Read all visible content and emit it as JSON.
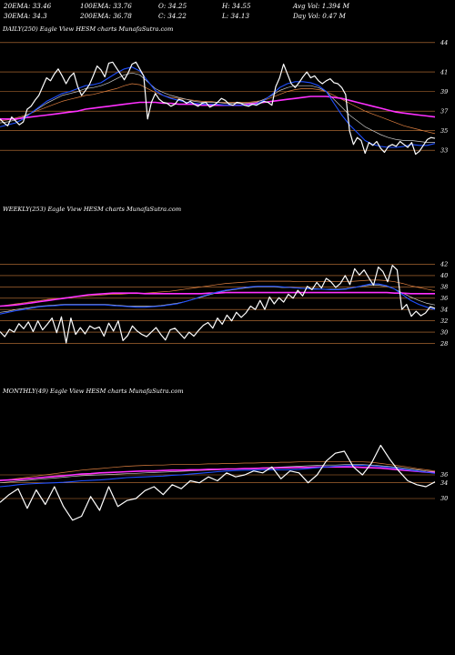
{
  "header": {
    "row1": [
      "20EMA: 33.46",
      "100EMA: 33.76",
      "O: 34.25",
      "H: 34.55",
      "Avg Vol: 1.394  M"
    ],
    "row2": [
      "30EMA: 34.3",
      "200EMA: 36.78",
      "C: 34.22",
      "L: 34.13",
      "Day Vol: 0.47  M"
    ]
  },
  "colors": {
    "background": "#000000",
    "price": "#ffffff",
    "ema_short": "#1f4fff",
    "ema_mid": "#c9c9c9",
    "ema_long": "#e08040",
    "ema_200": "#ff30ff",
    "hline": "#c87a3a"
  },
  "chart_data": [
    {
      "type": "line",
      "title": "DAILY(250) Eagle  View  HESM charts MunafaSutra.com",
      "ylim": [
        32,
        45
      ],
      "yticks": [
        44,
        41,
        39,
        37,
        35,
        33
      ],
      "n": 250,
      "series": [
        {
          "key": "price",
          "values": [
            36.2,
            35.8,
            35.5,
            36.4,
            36.0,
            35.6,
            35.9,
            37.2,
            37.5,
            38.1,
            38.6,
            39.5,
            40.4,
            40.1,
            40.8,
            41.3,
            40.6,
            39.8,
            40.5,
            40.9,
            39.5,
            38.6,
            39.1,
            39.7,
            40.6,
            41.6,
            41.2,
            40.5,
            41.9,
            42.0,
            41.4,
            40.8,
            40.2,
            40.9,
            41.8,
            42.0,
            41.3,
            40.6,
            36.2,
            37.9,
            38.8,
            38.2,
            37.9,
            37.8,
            37.5,
            37.7,
            38.2,
            38.1,
            37.8,
            38.0,
            37.7,
            37.5,
            37.8,
            37.9,
            37.4,
            37.6,
            37.9,
            38.3,
            38.1,
            37.7,
            37.6,
            37.9,
            37.8,
            37.6,
            37.5,
            37.7,
            37.6,
            37.8,
            38.0,
            37.9,
            37.6,
            39.5,
            40.4,
            41.8,
            40.8,
            39.8,
            39.4,
            39.9,
            40.5,
            41.0,
            40.4,
            40.6,
            40.1,
            39.8,
            40.1,
            40.3,
            39.9,
            39.8,
            39.4,
            38.7,
            35.0,
            33.6,
            34.3,
            34.0,
            32.7,
            33.8,
            33.5,
            33.9,
            33.2,
            32.8,
            33.4,
            33.6,
            33.4,
            33.9,
            33.6,
            33.3,
            33.8,
            32.6,
            32.9,
            33.5,
            34.1,
            34.3,
            34.22
          ]
        },
        {
          "key": "ema_short",
          "values": [
            35.4,
            35.6,
            35.8,
            36.2,
            36.8,
            37.4,
            38.0,
            38.4,
            38.8,
            39.0,
            39.3,
            39.6,
            39.7,
            39.9,
            40.4,
            40.9,
            41.3,
            41.5,
            41.1,
            40.1,
            39.1,
            38.6,
            38.3,
            38.1,
            37.9,
            37.8,
            37.7,
            37.7,
            37.7,
            37.6,
            37.6,
            37.6,
            37.6,
            37.7,
            38.1,
            38.7,
            39.4,
            39.8,
            40.0,
            40.0,
            39.9,
            39.6,
            39.0,
            37.8,
            36.6,
            35.6,
            34.8,
            34.0,
            33.6,
            33.4,
            33.3,
            33.3,
            33.4,
            33.6,
            33.5,
            33.5,
            33.7
          ]
        },
        {
          "key": "ema_mid",
          "values": [
            35.8,
            35.9,
            36.1,
            36.4,
            36.8,
            37.3,
            37.8,
            38.2,
            38.6,
            38.8,
            39.0,
            39.3,
            39.4,
            39.6,
            39.9,
            40.3,
            40.7,
            40.9,
            40.7,
            40.0,
            39.3,
            38.9,
            38.6,
            38.4,
            38.2,
            38.0,
            37.9,
            37.9,
            37.9,
            37.8,
            37.8,
            37.8,
            37.8,
            37.9,
            38.2,
            38.6,
            39.1,
            39.4,
            39.6,
            39.6,
            39.6,
            39.4,
            39.0,
            38.2,
            37.4,
            36.6,
            36.0,
            35.4,
            35.0,
            34.6,
            34.3,
            34.1,
            34.0,
            34.0,
            33.9,
            33.8,
            33.8
          ]
        },
        {
          "key": "ema_long",
          "values": [
            36.0,
            36.1,
            36.3,
            36.5,
            36.8,
            37.1,
            37.4,
            37.7,
            38.0,
            38.2,
            38.4,
            38.6,
            38.7,
            38.9,
            39.1,
            39.3,
            39.6,
            39.8,
            39.7,
            39.3,
            38.9,
            38.6,
            38.4,
            38.3,
            38.2,
            38.1,
            38.0,
            38.0,
            37.9,
            37.9,
            37.9,
            37.9,
            37.9,
            38.0,
            38.1,
            38.4,
            38.7,
            39.0,
            39.2,
            39.3,
            39.3,
            39.2,
            39.0,
            38.6,
            38.2,
            37.8,
            37.4,
            37.0,
            36.7,
            36.4,
            36.1,
            35.8,
            35.5,
            35.3,
            35.1,
            34.9,
            34.7
          ]
        },
        {
          "key": "ema_200",
          "values": [
            36.2,
            36.2,
            36.2,
            36.3,
            36.4,
            36.5,
            36.6,
            36.7,
            36.8,
            36.9,
            37.0,
            37.2,
            37.3,
            37.4,
            37.5,
            37.6,
            37.7,
            37.8,
            37.9,
            37.9,
            37.9,
            37.8,
            37.8,
            37.7,
            37.7,
            37.7,
            37.6,
            37.6,
            37.6,
            37.6,
            37.6,
            37.6,
            37.7,
            37.8,
            37.9,
            38.0,
            38.1,
            38.2,
            38.3,
            38.4,
            38.5,
            38.5,
            38.5,
            38.4,
            38.3,
            38.1,
            37.9,
            37.7,
            37.5,
            37.3,
            37.1,
            36.9,
            36.8,
            36.7,
            36.6,
            36.5,
            36.4
          ]
        }
      ]
    },
    {
      "type": "line",
      "title": "WEEKLY(253) Eagle  View  HESM charts MunafaSutra.com",
      "ylim": [
        26,
        44
      ],
      "yticks": [
        42,
        40,
        38,
        36,
        34,
        32,
        30,
        28
      ],
      "n": 253,
      "series": [
        {
          "key": "price",
          "values": [
            30.1,
            29.2,
            30.5,
            30.0,
            31.5,
            30.6,
            31.8,
            30.1,
            32.0,
            30.4,
            31.4,
            32.5,
            29.9,
            32.7,
            28.1,
            32.5,
            29.6,
            30.8,
            29.7,
            31.1,
            30.6,
            30.9,
            29.3,
            31.6,
            30.2,
            32.0,
            28.5,
            29.4,
            31.1,
            30.2,
            29.6,
            29.2,
            30.0,
            30.8,
            29.6,
            28.6,
            30.4,
            30.7,
            29.8,
            28.9,
            30.0,
            29.3,
            30.3,
            31.2,
            31.7,
            30.7,
            32.5,
            31.4,
            33.0,
            32.0,
            33.5,
            32.6,
            33.4,
            34.6,
            34.0,
            35.6,
            34.0,
            36.2,
            35.0,
            36.1,
            35.3,
            36.7,
            36.0,
            37.4,
            36.4,
            38.1,
            37.5,
            38.8,
            37.8,
            39.5,
            38.9,
            37.9,
            38.6,
            40.0,
            38.4,
            41.2,
            40.1,
            41.0,
            39.6,
            38.3,
            41.5,
            40.7,
            38.9,
            41.8,
            41.0,
            34.0,
            34.9,
            32.8,
            33.7,
            32.9,
            33.4,
            34.5,
            34.22
          ]
        },
        {
          "key": "ema_short",
          "values": [
            33.2,
            33.5,
            33.8,
            34.0,
            34.3,
            34.5,
            34.6,
            34.7,
            34.8,
            34.8,
            34.8,
            34.8,
            34.8,
            34.8,
            34.7,
            34.6,
            34.5,
            34.4,
            34.4,
            34.5,
            34.6,
            34.8,
            35.0,
            35.4,
            35.8,
            36.3,
            36.7,
            37.1,
            37.4,
            37.6,
            37.8,
            38.0,
            38.1,
            38.1,
            38.1,
            38.0,
            37.9,
            37.8,
            37.7,
            37.6,
            37.6,
            37.5,
            37.5,
            37.6,
            37.9,
            38.2,
            38.5,
            38.5,
            38.2,
            37.6,
            36.6,
            35.6,
            34.9,
            34.4,
            34.0
          ]
        },
        {
          "key": "ema_mid",
          "values": [
            33.5,
            33.7,
            34.0,
            34.2,
            34.4,
            34.6,
            34.7,
            34.8,
            34.9,
            34.9,
            34.9,
            34.9,
            34.9,
            34.9,
            34.8,
            34.7,
            34.6,
            34.6,
            34.6,
            34.6,
            34.7,
            34.9,
            35.1,
            35.4,
            35.8,
            36.2,
            36.6,
            37.0,
            37.3,
            37.5,
            37.7,
            37.9,
            38.0,
            38.0,
            38.0,
            37.9,
            37.9,
            37.8,
            37.7,
            37.7,
            37.6,
            37.6,
            37.6,
            37.7,
            37.9,
            38.1,
            38.3,
            38.3,
            38.1,
            37.6,
            36.9,
            36.2,
            35.6,
            35.1,
            34.8
          ]
        },
        {
          "key": "ema_long",
          "values": [
            34.6,
            34.8,
            35.0,
            35.2,
            35.4,
            35.6,
            35.8,
            35.9,
            36.1,
            36.2,
            36.3,
            36.4,
            36.5,
            36.6,
            36.7,
            36.7,
            36.8,
            36.8,
            36.9,
            37.0,
            37.1,
            37.2,
            37.4,
            37.6,
            37.8,
            38.0,
            38.2,
            38.4,
            38.6,
            38.7,
            38.8,
            38.9,
            39.0,
            39.0,
            39.0,
            39.0,
            39.0,
            38.9,
            38.9,
            38.9,
            38.9,
            38.9,
            38.9,
            38.9,
            39.0,
            39.1,
            39.2,
            39.2,
            39.1,
            38.9,
            38.6,
            38.2,
            37.9,
            37.6,
            37.3
          ]
        },
        {
          "key": "ema_200",
          "values": [
            34.6,
            34.7,
            34.8,
            35.0,
            35.2,
            35.4,
            35.6,
            35.8,
            36.0,
            36.2,
            36.4,
            36.6,
            36.7,
            36.8,
            36.9,
            36.9,
            36.9,
            36.9,
            36.8,
            36.8,
            36.8,
            36.8,
            36.8,
            36.8,
            36.8,
            36.8,
            36.9,
            36.9,
            37.0,
            37.0,
            37.0,
            37.0,
            37.0,
            37.0,
            37.0,
            37.0,
            37.0,
            37.0,
            37.0,
            37.0,
            37.0,
            37.0,
            37.0,
            37.0,
            37.0,
            37.0,
            37.0,
            37.0,
            37.0,
            36.9,
            36.9,
            36.8,
            36.8,
            36.8,
            36.8
          ]
        }
      ]
    },
    {
      "type": "line",
      "title": "MONTHLY(49) Eagle  View  HESM charts MunafaSutra.com",
      "ylim": [
        18,
        48
      ],
      "yticks": [
        36,
        34,
        30
      ],
      "n": 49,
      "series": [
        {
          "key": "price",
          "values": [
            29.0,
            31.0,
            32.5,
            27.5,
            32.2,
            28.5,
            33.0,
            28.0,
            24.5,
            25.5,
            30.5,
            27.0,
            33.0,
            28.0,
            29.5,
            30.0,
            32.0,
            33.0,
            31.0,
            33.5,
            32.5,
            34.5,
            34.0,
            35.5,
            34.5,
            36.5,
            35.5,
            36.0,
            37.0,
            36.5,
            38.0,
            35.0,
            37.0,
            36.5,
            34.0,
            36.0,
            39.5,
            41.5,
            42.0,
            38.0,
            36.0,
            39.0,
            43.5,
            40.0,
            37.0,
            34.5,
            33.5,
            33.0,
            34.22
          ]
        },
        {
          "key": "ema_short",
          "values": [
            33.0,
            33.2,
            33.5,
            33.7,
            33.8,
            33.9,
            34.0,
            34.1,
            34.3,
            34.5,
            34.6,
            34.7,
            34.9,
            35.1,
            35.3,
            35.4,
            35.5,
            35.6,
            35.7,
            35.9,
            36.0,
            36.2,
            36.4,
            36.6,
            36.8,
            37.0,
            37.1,
            37.2,
            37.2,
            37.3,
            37.3,
            37.3,
            37.3,
            37.4,
            37.6,
            37.8,
            38.0,
            38.2,
            38.3,
            38.4,
            38.4,
            38.3,
            38.1,
            37.9,
            37.6,
            37.3,
            37.0,
            36.7,
            36.4
          ]
        },
        {
          "key": "ema_mid",
          "values": [
            34.0,
            34.2,
            34.4,
            34.6,
            34.8,
            35.0,
            35.2,
            35.4,
            35.6,
            35.8,
            35.9,
            36.0,
            36.1,
            36.2,
            36.3,
            36.4,
            36.5,
            36.6,
            36.7,
            36.8,
            36.9,
            37.0,
            37.1,
            37.2,
            37.3,
            37.4,
            37.5,
            37.6,
            37.7,
            37.8,
            37.9,
            38.0,
            38.1,
            38.2,
            38.3,
            38.4,
            38.5,
            38.5,
            38.6,
            38.6,
            38.6,
            38.5,
            38.3,
            38.1,
            37.9,
            37.6,
            37.3,
            37.0,
            36.8
          ]
        },
        {
          "key": "ema_long",
          "values": [
            34.5,
            34.8,
            35.1,
            35.4,
            35.7,
            36.0,
            36.3,
            36.6,
            36.9,
            37.2,
            37.4,
            37.6,
            37.8,
            38.0,
            38.2,
            38.3,
            38.4,
            38.5,
            38.5,
            38.6,
            38.6,
            38.7,
            38.7,
            38.8,
            38.8,
            38.9,
            38.9,
            39.0,
            39.0,
            39.1,
            39.1,
            39.2,
            39.2,
            39.3,
            39.3,
            39.4,
            39.4,
            39.4,
            39.4,
            39.4,
            39.3,
            39.2,
            38.9,
            38.6,
            38.3,
            38.0,
            37.6,
            37.3,
            37.0
          ]
        },
        {
          "key": "ema_200",
          "values": [
            34.6,
            34.7,
            34.8,
            35.0,
            35.2,
            35.4,
            35.6,
            35.8,
            36.0,
            36.2,
            36.3,
            36.5,
            36.6,
            36.7,
            36.8,
            36.9,
            37.0,
            37.0,
            37.1,
            37.2,
            37.2,
            37.3,
            37.3,
            37.4,
            37.4,
            37.5,
            37.5,
            37.6,
            37.6,
            37.7,
            37.7,
            37.8,
            37.8,
            37.9,
            37.9,
            38.0,
            38.0,
            38.0,
            38.0,
            38.0,
            37.9,
            37.8,
            37.7,
            37.5,
            37.3,
            37.1,
            36.9,
            36.7,
            36.6
          ]
        }
      ]
    }
  ]
}
